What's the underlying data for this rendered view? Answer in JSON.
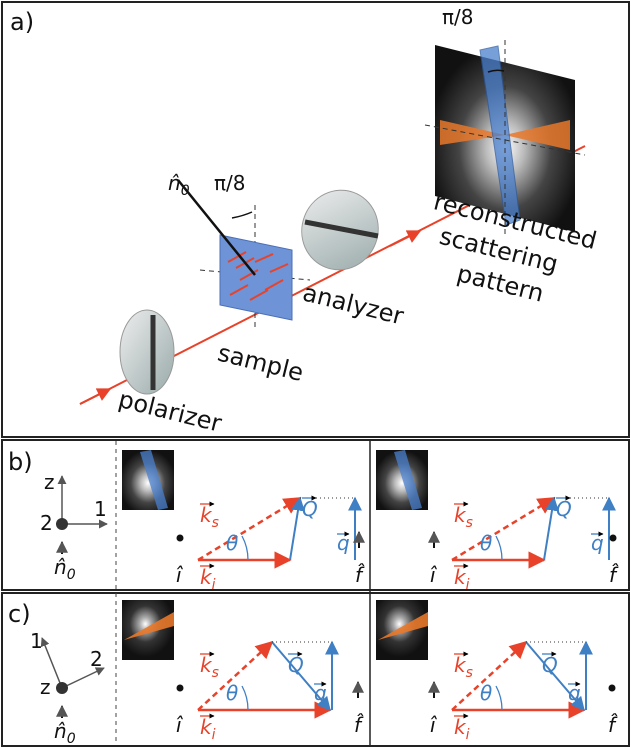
{
  "panel_a": {
    "label": "a)",
    "pattern_angle": "π/8",
    "sample_angle": "π/8",
    "normal": {
      "base": "n̂",
      "sub": "0"
    },
    "pattern_label": [
      "reconstructed",
      "scattering",
      "pattern"
    ],
    "analyzer": "analyzer",
    "sample": "sample",
    "polarizer": "polarizer"
  },
  "panel_b": {
    "label": "b)",
    "axes": {
      "up": "z",
      "right": "1",
      "origin": "2",
      "normal": {
        "base": "n̂",
        "sub": "0"
      }
    },
    "diagrams": [
      {
        "ks": {
          "base": "k",
          "sub": "s"
        },
        "ki": {
          "base": "k",
          "sub": "i"
        },
        "Q": "Q",
        "q": "q",
        "theta": "θ",
        "i": "î",
        "f": "f̂"
      },
      {
        "ks": {
          "base": "k",
          "sub": "s"
        },
        "ki": {
          "base": "k",
          "sub": "i"
        },
        "Q": "Q",
        "q": "q",
        "theta": "θ",
        "i": "î",
        "f": "f̂"
      }
    ]
  },
  "panel_c": {
    "label": "c)",
    "axes": {
      "up": "1",
      "right": "2",
      "origin": "z",
      "normal": {
        "base": "n̂",
        "sub": "0"
      }
    },
    "diagrams": [
      {
        "ks": {
          "base": "k",
          "sub": "s"
        },
        "ki": {
          "base": "k",
          "sub": "i"
        },
        "Q": "Q",
        "q": "q",
        "theta": "θ",
        "i": "î",
        "f": "f̂"
      },
      {
        "ks": {
          "base": "k",
          "sub": "s"
        },
        "ki": {
          "base": "k",
          "sub": "i"
        },
        "Q": "Q",
        "q": "q",
        "theta": "θ",
        "i": "î",
        "f": "f̂"
      }
    ]
  }
}
